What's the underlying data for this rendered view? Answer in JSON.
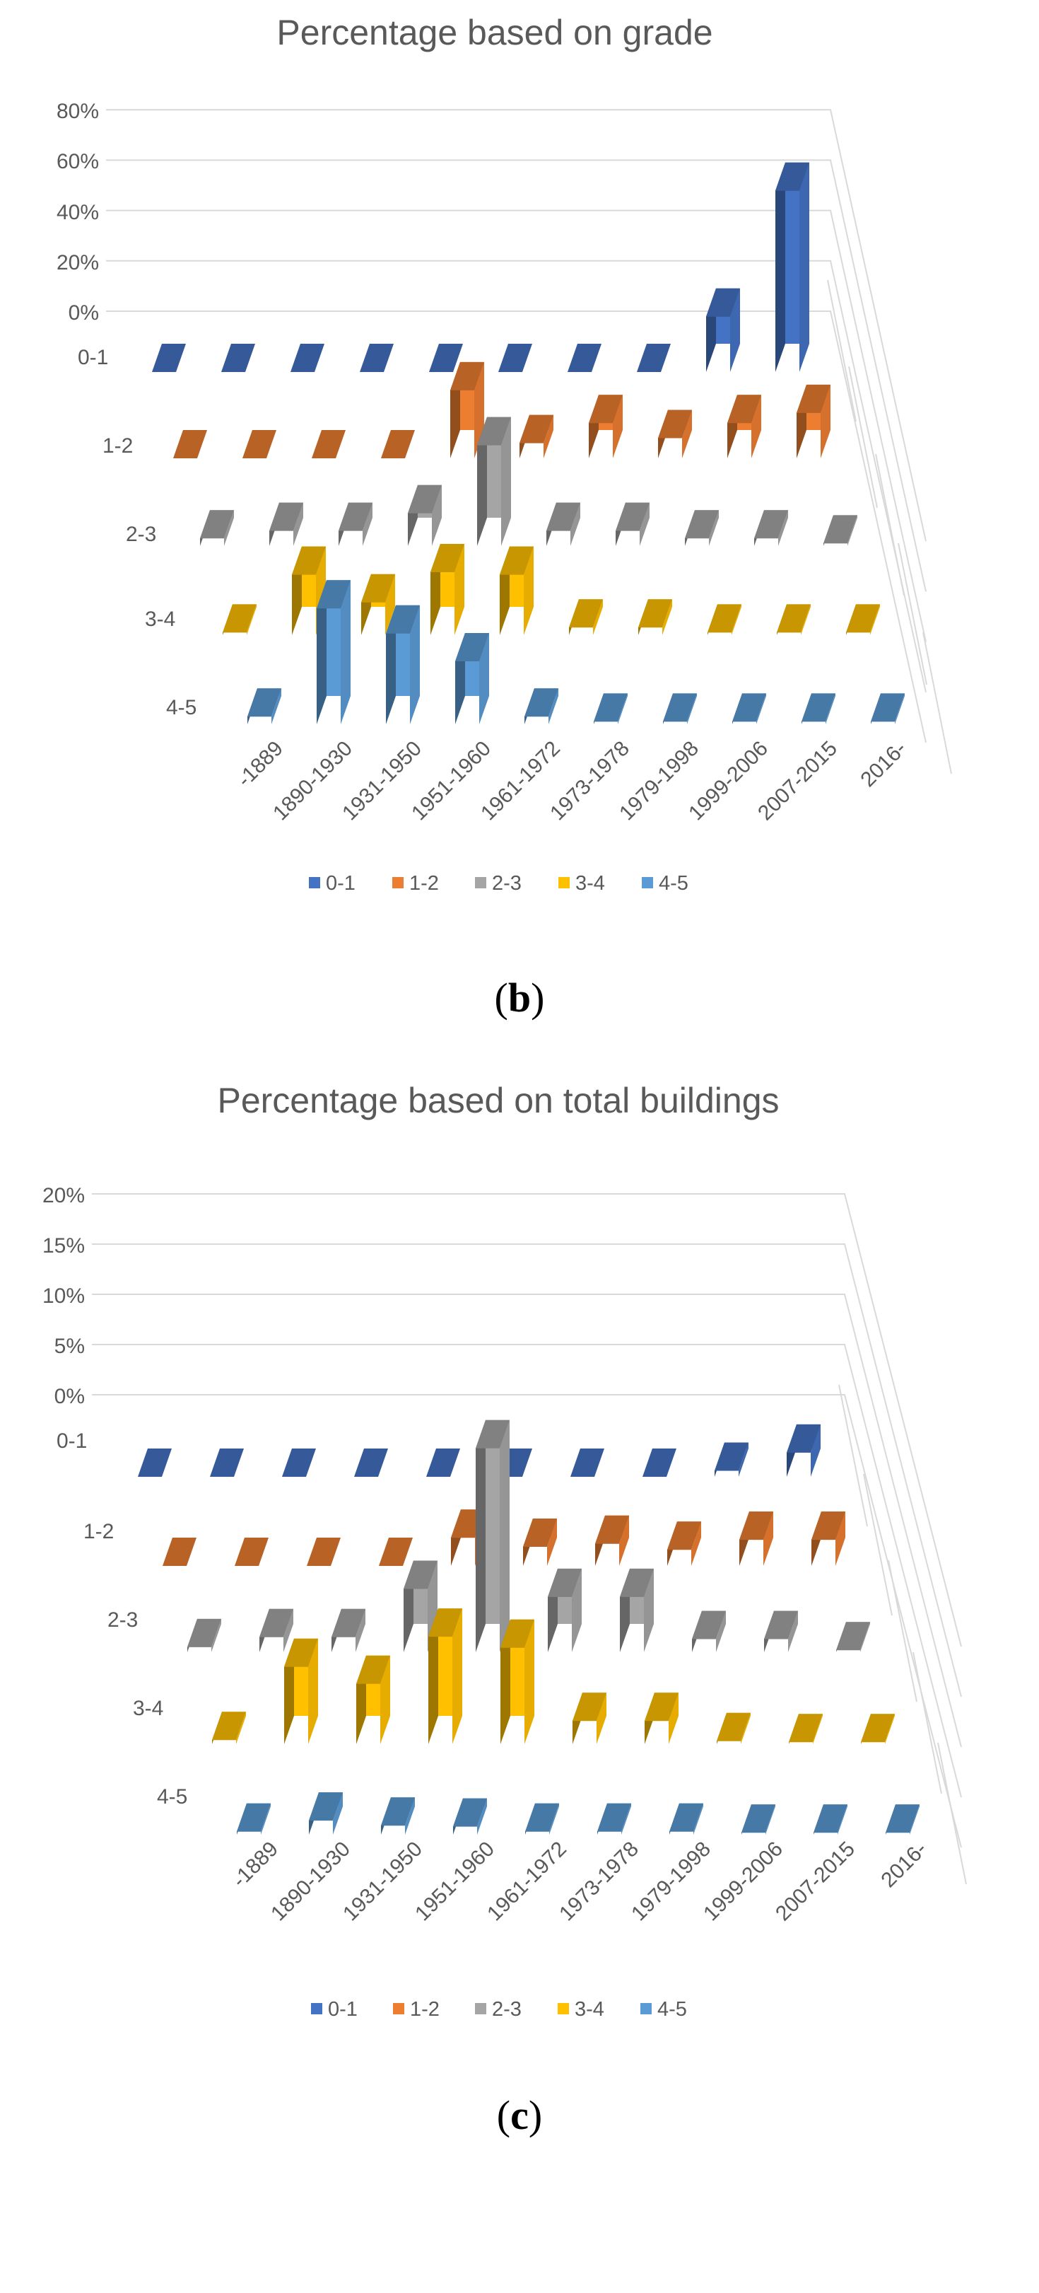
{
  "chart_data": [
    {
      "type": "bar3d",
      "title": "Percentage based on grade",
      "caption": "(b)",
      "y_ticks": [
        "0%",
        "20%",
        "40%",
        "60%",
        "80%"
      ],
      "ylim": [
        0,
        80
      ],
      "categories": [
        "-1889",
        "1890-1930",
        "1931-1950",
        "1951-1960",
        "1961-1972",
        "1973-1978",
        "1979-1998",
        "1999-2006",
        "2007-2015",
        "2016-"
      ],
      "series": [
        {
          "name": "0-1",
          "values": [
            0,
            0,
            0,
            0,
            0,
            0,
            0,
            0,
            22,
            72
          ]
        },
        {
          "name": "1-2",
          "values": [
            0,
            0,
            0,
            0,
            27,
            6,
            14,
            8,
            14,
            18
          ]
        },
        {
          "name": "2-3",
          "values": [
            3,
            6,
            6,
            13,
            40,
            6,
            6,
            3,
            3,
            1
          ]
        },
        {
          "name": "3-4",
          "values": [
            1,
            24,
            13,
            25,
            24,
            3,
            3,
            1,
            1,
            1
          ]
        },
        {
          "name": "4-5",
          "values": [
            3,
            46,
            36,
            25,
            3,
            1,
            1,
            1,
            1,
            1
          ]
        }
      ],
      "legend_position": "bottom"
    },
    {
      "type": "bar3d",
      "title": "Percentage based on total buildings",
      "caption": "(c)",
      "y_ticks": [
        "0%",
        "5%",
        "10%",
        "15%",
        "20%"
      ],
      "ylim": [
        0,
        20
      ],
      "categories": [
        "-1889",
        "1890-1930",
        "1931-1950",
        "1951-1960",
        "1961-1972",
        "1973-1978",
        "1979-1998",
        "1999-2006",
        "2007-2015",
        "2016-"
      ],
      "series": [
        {
          "name": "0-1",
          "values": [
            0,
            0,
            0,
            0,
            0,
            0,
            0,
            0,
            0.6,
            2.4
          ]
        },
        {
          "name": "1-2",
          "values": [
            0,
            0,
            0,
            0,
            2.8,
            1.9,
            2.2,
            1.6,
            2.6,
            2.6
          ]
        },
        {
          "name": "2-3",
          "values": [
            0.5,
            1.5,
            1.5,
            6.3,
            20.3,
            5.5,
            5.5,
            1.3,
            1.3,
            0.2
          ]
        },
        {
          "name": "3-4",
          "values": [
            0.4,
            7.7,
            6.0,
            10.7,
            9.6,
            2.3,
            2.3,
            0.3,
            0.2,
            0.2
          ]
        },
        {
          "name": "4-5",
          "values": [
            0.3,
            1.4,
            0.9,
            0.8,
            0.3,
            0.3,
            0.3,
            0.2,
            0.2,
            0.2
          ]
        }
      ],
      "legend_position": "bottom"
    }
  ],
  "colors": {
    "0-1": "#4472c4",
    "1-2": "#ed7d31",
    "2-3": "#a5a5a5",
    "3-4": "#ffc000",
    "4-5": "#5b9bd5",
    "text": "#595959",
    "grid": "#d9d9d9"
  }
}
